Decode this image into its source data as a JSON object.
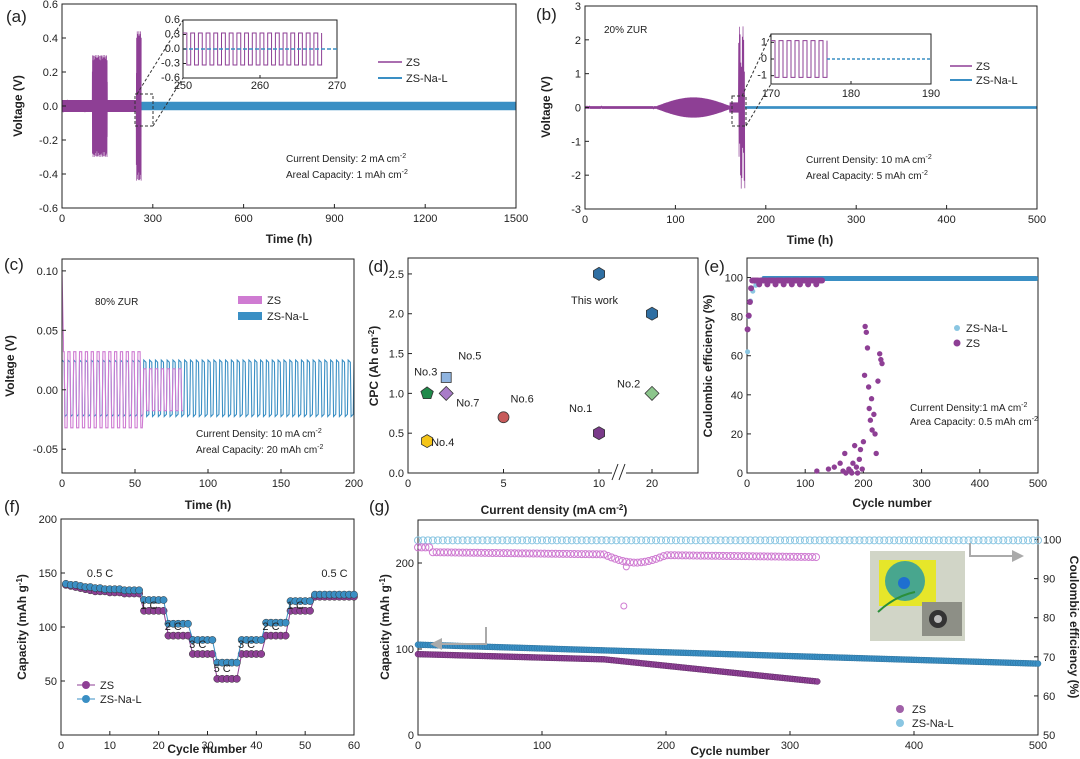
{
  "colors": {
    "zs": "#8e3f95",
    "zs_light": "#cf7bd2",
    "nal": "#3a8fc4",
    "nal_light": "#8ac6e2",
    "arrow": "#aaaaaa"
  },
  "chart_data": [
    {
      "id": "a",
      "label": "(a)",
      "type": "line",
      "xlabel": "Time (h)",
      "ylabel": "Voltage (V)",
      "xlim": [
        0,
        1500
      ],
      "ylim": [
        -0.6,
        0.6
      ],
      "xticks": [
        "0",
        "300",
        "600",
        "900",
        "1200",
        "1500"
      ],
      "yticks": [
        "-0.6",
        "-0.4",
        "-0.2",
        "0.0",
        "0.2",
        "0.4",
        "0.6"
      ],
      "legend": [
        "ZS",
        "ZS-Na-L"
      ],
      "annotations": {
        "line1_pre": "Current Density: 2 mA cm",
        "line1_sup": "-2",
        "line2_pre": "Areal Capacity: 1 mAh cm",
        "line2_sup": "-2"
      },
      "inset": {
        "xlim": [
          250,
          270
        ],
        "ylim": [
          -0.6,
          0.6
        ],
        "xticks": [
          "250",
          "260",
          "270"
        ],
        "yticks": [
          "0.6",
          "0.3",
          "0.0",
          "-0.3",
          "-0.6"
        ]
      },
      "series": [
        {
          "name": "ZS",
          "short_circuit_h": 262,
          "bursts": [
            {
              "t": [
                100,
                150
              ],
              "amp": 0.3
            },
            {
              "t": [
                245,
                262
              ],
              "amp": 0.44
            }
          ]
        },
        {
          "name": "ZS-Na-L",
          "t": [
            0,
            1500
          ],
          "amp": 0.025
        }
      ]
    },
    {
      "id": "b",
      "label": "(b)",
      "type": "line",
      "xlabel": "Time (h)",
      "ylabel": "Voltage (V)",
      "xlim": [
        0,
        500
      ],
      "ylim": [
        -3,
        3
      ],
      "xticks": [
        "0",
        "100",
        "200",
        "300",
        "400",
        "500"
      ],
      "yticks": [
        "-3",
        "-2",
        "-1",
        "0",
        "1",
        "2",
        "3"
      ],
      "legend": [
        "ZS",
        "ZS-Na-L"
      ],
      "note": "20% ZUR",
      "annotations": {
        "line1_pre": "Current Density: 10 mA cm",
        "line1_sup": "-2",
        "line2_pre": "Areal Capacity: 5 mAh cm",
        "line2_sup": "-2"
      },
      "inset": {
        "xlim": [
          170,
          190
        ],
        "ylim": [
          -1.5,
          1.5
        ],
        "xticks": [
          "170",
          "180",
          "190"
        ],
        "yticks": [
          "1",
          "0",
          "-1"
        ]
      },
      "series": [
        {
          "name": "ZS",
          "short_circuit_h": 177,
          "peak_amp": 2.4
        },
        {
          "name": "ZS-Na-L",
          "t": [
            0,
            500
          ],
          "amp": 0.04
        }
      ]
    },
    {
      "id": "c",
      "label": "(c)",
      "type": "line",
      "xlabel": "Time (h)",
      "ylabel": "Voltage (V)",
      "xlim": [
        0,
        200
      ],
      "ylim": [
        -0.07,
        0.11
      ],
      "xticks": [
        "0",
        "50",
        "100",
        "150",
        "200"
      ],
      "yticks": [
        "-0.05",
        "0.00",
        "0.05",
        "0.10"
      ],
      "legend": [
        "ZS",
        "ZS-Na-L"
      ],
      "note": "80% ZUR",
      "annotations": {
        "line1_pre": "Current Density: 10 mA cm",
        "line1_sup": "-2",
        "line2_pre": "Areal Capacity: 20 mAh cm",
        "line2_sup": "-2"
      },
      "series": [
        {
          "name": "ZS",
          "t": [
            0,
            83
          ],
          "amp": 0.032,
          "period": 4
        },
        {
          "name": "ZS-Na-L",
          "t": [
            0,
            200
          ],
          "amp": 0.025,
          "period": 4
        }
      ]
    },
    {
      "id": "d",
      "label": "(d)",
      "type": "scatter",
      "xlabel": "Current density (mA cm",
      "xlabel_sup": "-2",
      "xlabel_end": ")",
      "ylabel": "CPC (Ah cm",
      "ylabel_sup": "-2",
      "ylabel_end": ")",
      "ylim": [
        0,
        2.7
      ],
      "xticks": [
        "0",
        "5",
        "10",
        "20"
      ],
      "yticks": [
        "0.0",
        "0.5",
        "1.0",
        "1.5",
        "2.0",
        "2.5"
      ],
      "points": [
        {
          "name": "No.3",
          "x": 1,
          "y": 1.0,
          "shape": "pentagon",
          "color": "#1f8a4a"
        },
        {
          "name": "No.4",
          "x": 1,
          "y": 0.4,
          "shape": "hexagon",
          "color": "#f5c518"
        },
        {
          "name": "No.5",
          "x": 2,
          "y": 1.2,
          "shape": "square",
          "color": "#8fb4e0"
        },
        {
          "name": "No.7",
          "x": 2,
          "y": 1.0,
          "shape": "diamond",
          "color": "#a97cc8"
        },
        {
          "name": "No.6",
          "x": 5,
          "y": 0.7,
          "shape": "circle",
          "color": "#c75a5a"
        },
        {
          "name": "No.1",
          "x": 10,
          "y": 0.5,
          "shape": "hexagon",
          "color": "#7a3a8a"
        },
        {
          "name": "No.2",
          "x": 20,
          "y": 1.0,
          "shape": "diamond",
          "color": "#8cc68c"
        },
        {
          "name": "This work",
          "x": 10,
          "y": 2.5,
          "shape": "hexagon",
          "color": "#2f6fa3"
        },
        {
          "name": "This work",
          "x": 20,
          "y": 2.0,
          "shape": "hexagon",
          "color": "#2f6fa3"
        }
      ],
      "label_this_work": "This work"
    },
    {
      "id": "e",
      "label": "(e)",
      "type": "scatter",
      "xlabel": "Cycle number",
      "ylabel": "Coulombic efficiency (%)",
      "xlim": [
        0,
        500
      ],
      "ylim": [
        0,
        110
      ],
      "xticks": [
        "0",
        "100",
        "200",
        "300",
        "400",
        "500"
      ],
      "yticks": [
        "0",
        "20",
        "40",
        "60",
        "80",
        "100"
      ],
      "legend": [
        "ZS-Na-L",
        "ZS"
      ],
      "annotations": {
        "line1_pre": "Current Density:1 mA cm",
        "line1_sup": "-2",
        "line2_pre": "Area Capacity: 0.5 mAh cm",
        "line2_sup": "-2"
      },
      "series": [
        {
          "name": "ZS-Na-L",
          "stable_ce": 99.5,
          "cycles": [
            0,
            500
          ]
        },
        {
          "name": "ZS",
          "stable_ce": 98.5,
          "cycles": [
            0,
            130
          ],
          "scatter_points": [
            [
              170,
              0
            ],
            [
              175,
              2
            ],
            [
              178,
              1
            ],
            [
              182,
              5
            ],
            [
              185,
              14
            ],
            [
              188,
              3
            ],
            [
              190,
              0
            ],
            [
              193,
              7
            ],
            [
              195,
              12
            ],
            [
              198,
              2
            ],
            [
              200,
              16
            ],
            [
              202,
              50
            ],
            [
              203,
              75
            ],
            [
              205,
              72
            ],
            [
              207,
              64
            ],
            [
              209,
              44
            ],
            [
              210,
              33
            ],
            [
              212,
              27
            ],
            [
              214,
              38
            ],
            [
              215,
              22
            ],
            [
              218,
              30
            ],
            [
              220,
              20
            ],
            [
              222,
              10
            ],
            [
              225,
              47
            ],
            [
              228,
              61
            ],
            [
              230,
              58
            ],
            [
              232,
              56
            ],
            [
              120,
              1
            ],
            [
              140,
              2
            ],
            [
              150,
              3
            ],
            [
              160,
              5
            ],
            [
              165,
              1
            ],
            [
              168,
              10
            ],
            [
              180,
              0
            ]
          ]
        }
      ]
    },
    {
      "id": "f",
      "label": "(f)",
      "type": "scatter",
      "xlabel": "Cycle number",
      "ylabel": "Capacity (mAh g",
      "ylabel_sup": "-1",
      "ylabel_end": ")",
      "xlim": [
        0,
        60
      ],
      "ylim": [
        0,
        200
      ],
      "xticks": [
        "0",
        "10",
        "20",
        "30",
        "40",
        "50",
        "60"
      ],
      "yticks": [
        "50",
        "100",
        "150",
        "200"
      ],
      "legend": [
        "ZS",
        "ZS-Na-L"
      ],
      "rates": [
        {
          "label": "0.5 C",
          "x": 8
        },
        {
          "label": "1 C",
          "x": 18
        },
        {
          "label": "2 C",
          "x": 23
        },
        {
          "label": "3 C",
          "x": 28
        },
        {
          "label": "5 C",
          "x": 33
        },
        {
          "label": "3 C",
          "x": 38
        },
        {
          "label": "2 C",
          "x": 43
        },
        {
          "label": "1 C",
          "x": 48
        },
        {
          "label": "0.5 C",
          "x": 56
        }
      ],
      "series": [
        {
          "name": "ZS",
          "values": [
            139,
            138,
            137,
            136,
            135,
            134,
            133,
            133,
            133,
            132,
            132,
            132,
            131,
            131,
            131,
            131,
            115,
            115,
            115,
            115,
            115,
            92,
            92,
            92,
            92,
            92,
            75,
            75,
            75,
            75,
            75,
            52,
            52,
            52,
            52,
            52,
            75,
            75,
            75,
            75,
            75,
            92,
            92,
            92,
            92,
            92,
            115,
            115,
            115,
            115,
            115,
            128,
            128,
            128,
            128,
            128,
            128,
            128,
            128,
            128
          ]
        },
        {
          "name": "ZS-Na-L",
          "values": [
            140,
            139,
            139,
            138,
            137,
            137,
            136,
            136,
            135,
            135,
            135,
            135,
            134,
            134,
            134,
            134,
            125,
            125,
            125,
            125,
            125,
            103,
            103,
            103,
            103,
            103,
            88,
            88,
            88,
            88,
            88,
            67,
            67,
            67,
            67,
            67,
            88,
            88,
            88,
            88,
            88,
            104,
            104,
            104,
            104,
            104,
            124,
            124,
            124,
            124,
            124,
            130,
            130,
            130,
            130,
            130,
            130,
            130,
            130,
            130
          ]
        }
      ]
    },
    {
      "id": "g",
      "label": "(g)",
      "type": "scatter",
      "xlabel": "Cycle number",
      "ylabel": "Capacity (mAh g",
      "ylabel_sup": "-1",
      "ylabel_end": ")",
      "y2label": "Coulombic efficiency (%)",
      "xlim": [
        0,
        500
      ],
      "ylim": [
        0,
        250
      ],
      "y2lim": [
        50,
        105
      ],
      "xticks": [
        "0",
        "100",
        "200",
        "300",
        "400",
        "500"
      ],
      "yticks": [
        "0",
        "100",
        "200"
      ],
      "y2ticks": [
        "50",
        "60",
        "70",
        "80",
        "90",
        "100"
      ],
      "legend": [
        "ZS",
        "ZS-Na-L"
      ],
      "series": [
        {
          "name": "ZS capacity",
          "x0": 0,
          "x1": 323,
          "y0": 95,
          "y1": 62
        },
        {
          "name": "ZS-Na-L capacity",
          "x0": 0,
          "x1": 500,
          "y0": 105,
          "y1": 83
        },
        {
          "name": "ZS CE",
          "x0": 0,
          "x1": 323,
          "y0": 97,
          "y1": 96.5
        },
        {
          "name": "ZS-Na-L CE",
          "x0": 0,
          "x1": 500,
          "y0": 99.8,
          "y1": 99.8
        }
      ],
      "photo": "cell-photo"
    }
  ]
}
